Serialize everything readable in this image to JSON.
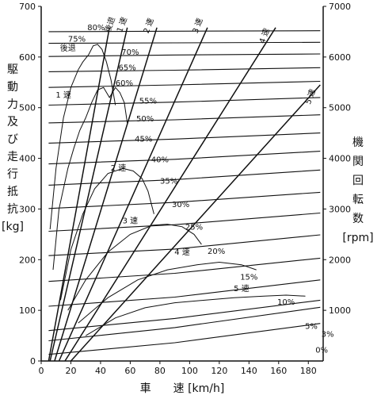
{
  "chart_data": {
    "type": "line",
    "xlabel": "車　　速 [km/h]",
    "ylabel_left": [
      "駆",
      "動",
      "力",
      "及",
      "び",
      "走",
      "行",
      "抵",
      "抗",
      "[kg]"
    ],
    "ylabel_right": [
      "機",
      "関",
      "回",
      "転",
      "数",
      "[rpm]"
    ],
    "x_ticks": [
      "0",
      "20",
      "40",
      "60",
      "80",
      "100",
      "120",
      "140",
      "160",
      "180"
    ],
    "y_ticks_left": [
      "0",
      "100",
      "200",
      "300",
      "400",
      "500",
      "600",
      "700"
    ],
    "y_ticks_right": [
      "1000",
      "2000",
      "3000",
      "4000",
      "5000",
      "6000",
      "7000"
    ],
    "xlim": [
      0,
      190
    ],
    "ylim_left": [
      0,
      700
    ],
    "ylim_right": [
      0,
      7000
    ],
    "gradient_labels": [
      "80%",
      "75%",
      "70%",
      "65%",
      "60%",
      "55%",
      "50%",
      "45%",
      "40%",
      "35%",
      "30%",
      "25%",
      "20%",
      "15%",
      "10%",
      "5%",
      "3%",
      "0%"
    ],
    "gradient_resistance": [
      {
        "name": "80%",
        "values": [
          650,
          651,
          652
        ]
      },
      {
        "name": "75%",
        "values": [
          627,
          628,
          629
        ]
      },
      {
        "name": "70%",
        "values": [
          601,
          604,
          606
        ]
      },
      {
        "name": "65%",
        "values": [
          571,
          574,
          579
        ]
      },
      {
        "name": "60%",
        "values": [
          540,
          545,
          552
        ]
      },
      {
        "name": "55%",
        "values": [
          505,
          511,
          520
        ]
      },
      {
        "name": "50%",
        "values": [
          470,
          476,
          486
        ]
      },
      {
        "name": "45%",
        "values": [
          430,
          438,
          450
        ]
      },
      {
        "name": "40%",
        "values": [
          389,
          398,
          414
        ]
      },
      {
        "name": "35%",
        "values": [
          347,
          358,
          377
        ]
      },
      {
        "name": "30%",
        "values": [
          301,
          313,
          333
        ]
      },
      {
        "name": "25%",
        "values": [
          256,
          269,
          292
        ]
      },
      {
        "name": "20%",
        "values": [
          208,
          221,
          249
        ]
      },
      {
        "name": "15%",
        "values": [
          157,
          173,
          203
        ]
      },
      {
        "name": "10%",
        "values": [
          108,
          126,
          160
        ]
      },
      {
        "name": "5%",
        "values": [
          60,
          84,
          120
        ]
      },
      {
        "name": "3%",
        "values": [
          40,
          66,
          106
        ]
      },
      {
        "name": "0%",
        "values": [
          13,
          36,
          74
        ]
      }
    ],
    "gradient_x": [
      5,
      90,
      188
    ],
    "gear_labels": [
      "後退",
      "1 速",
      "2 速",
      "3 速",
      "4 速",
      "5 速"
    ],
    "speed_labels": [
      "後退",
      "1 速",
      "2 速",
      "3 速",
      "4 速",
      "5 速"
    ],
    "speed_lines": [
      {
        "name": "後退",
        "x": [
          5,
          46
        ],
        "y": [
          0,
          658
        ]
      },
      {
        "name": "1 速",
        "x": [
          6,
          58
        ],
        "y": [
          0,
          658
        ]
      },
      {
        "name": "2 速",
        "x": [
          9,
          78
        ],
        "y": [
          0,
          658
        ]
      },
      {
        "name": "3 速",
        "x": [
          12,
          112
        ],
        "y": [
          0,
          658
        ]
      },
      {
        "name": "4 速",
        "x": [
          16,
          158
        ],
        "y": [
          0,
          658
        ]
      },
      {
        "name": "5 速",
        "x": [
          20,
          188
        ],
        "y": [
          0,
          545
        ]
      }
    ],
    "tractive_force": [
      {
        "name": "後退",
        "x": [
          6,
          10,
          15,
          20,
          25,
          28,
          32,
          35,
          38,
          41,
          44,
          47,
          50
        ],
        "y": [
          260,
          380,
          480,
          540,
          575,
          590,
          605,
          622,
          625,
          615,
          590,
          555,
          505
        ]
      },
      {
        "name": "1 速",
        "x": [
          8,
          12,
          18,
          22,
          26,
          30,
          34,
          38,
          42,
          46,
          50,
          53,
          56,
          58
        ],
        "y": [
          180,
          300,
          380,
          420,
          455,
          480,
          510,
          535,
          540,
          520,
          540,
          530,
          510,
          470
        ]
      },
      {
        "name": "2 速",
        "x": [
          13,
          20,
          28,
          36,
          45,
          55,
          62,
          68,
          72,
          76
        ],
        "y": [
          120,
          220,
          290,
          340,
          370,
          380,
          375,
          360,
          335,
          290
        ]
      },
      {
        "name": "3 速",
        "x": [
          18,
          30,
          45,
          60,
          75,
          85,
          95,
          103,
          108
        ],
        "y": [
          100,
          160,
          215,
          250,
          268,
          270,
          265,
          250,
          230
        ]
      },
      {
        "name": "4 速",
        "x": [
          25,
          45,
          65,
          85,
          105,
          120,
          135,
          145
        ],
        "y": [
          75,
          125,
          160,
          180,
          190,
          195,
          190,
          180
        ]
      },
      {
        "name": "5 速",
        "x": [
          30,
          50,
          70,
          90,
          110,
          130,
          150,
          165,
          178
        ],
        "y": [
          50,
          85,
          105,
          115,
          120,
          125,
          128,
          130,
          128
        ]
      }
    ]
  }
}
